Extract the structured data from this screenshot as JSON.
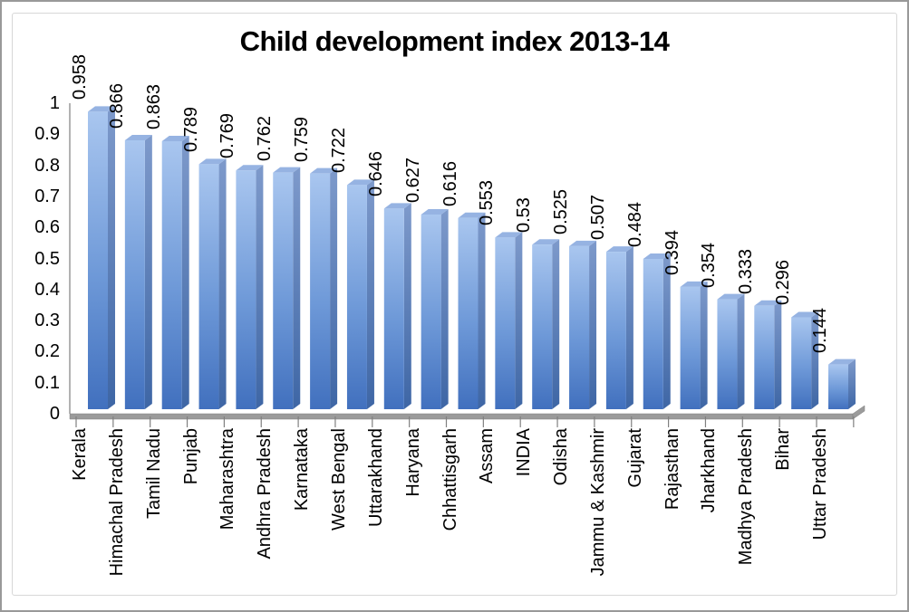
{
  "chart_data": {
    "type": "bar",
    "style": "3d-column",
    "title": "Child development index 2013-14",
    "categories": [
      "Kerala",
      "Himachal Pradesh",
      "Tamil Nadu",
      "Punjab",
      "Maharashtra",
      "Andhra Pradesh",
      "Karnataka",
      "West Bengal",
      "Uttarakhand",
      "Haryana",
      "Chhattisgarh",
      "Assam",
      "INDIA",
      "Odisha",
      "Jammu & Kashmir",
      "Gujarat",
      "Rajasthan",
      "Jharkhand",
      "Madhya Pradesh",
      "Bihar",
      "Uttar Pradesh"
    ],
    "values": [
      0.958,
      0.866,
      0.863,
      0.789,
      0.769,
      0.762,
      0.759,
      0.722,
      0.646,
      0.627,
      0.616,
      0.553,
      0.53,
      0.525,
      0.507,
      0.484,
      0.394,
      0.354,
      0.333,
      0.296,
      0.144
    ],
    "value_labels": [
      "0.958",
      "0.866",
      "0.863",
      "0.789",
      "0.769",
      "0.762",
      "0.759",
      "0.722",
      "0.646",
      "0.627",
      "0.616",
      "0.553",
      "0.53",
      "0.525",
      "0.507",
      "0.484",
      "0.394",
      "0.354",
      "0.333",
      "0.296",
      "0.144"
    ],
    "y_ticks": [
      "1",
      "0.9",
      "0.8",
      "0.7",
      "0.6",
      "0.5",
      "0.4",
      "0.3",
      "0.2",
      "0.1",
      "0"
    ],
    "ylim": [
      0,
      1
    ],
    "xlabel": "",
    "ylabel": "",
    "legend": "none",
    "grid": true,
    "colors": {
      "bar_front_top": "#A9C6EF",
      "bar_front_mid": "#6E99D8",
      "bar_front_bottom": "#4170BE",
      "bar_side_top": "#7E9ACB",
      "bar_side_bottom": "#3E66A5",
      "bar_cap": "#96B3E2",
      "gridline": "#808080",
      "axis": "#808080",
      "floor_top": "#B3B3B3",
      "floor_front": "#9B9B9B",
      "text": "#000000"
    }
  }
}
